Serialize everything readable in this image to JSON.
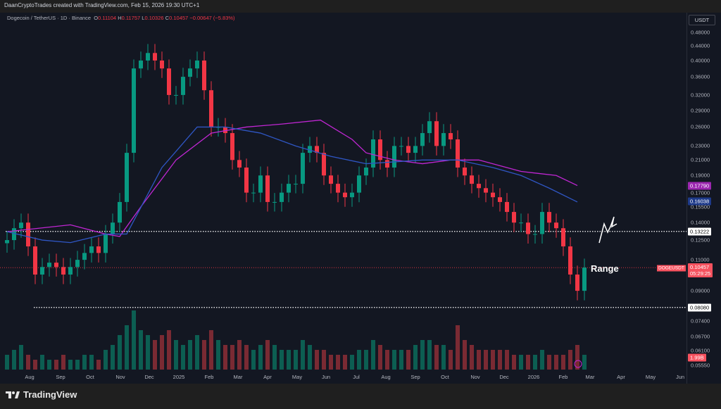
{
  "header": {
    "created_by": "DaanCryptoTrades created with TradingView.com, Feb 15, 2026 19:30 UTC+1"
  },
  "legend": {
    "symbol": "Dogecoin / TetherUS · 1D · Binance",
    "open_label": "O",
    "open": "0.11104",
    "high_label": "H",
    "high": "0.11757",
    "low_label": "L",
    "low": "0.10326",
    "close_label": "C",
    "close": "0.10457",
    "change": "−0.00647 (−5.83%)"
  },
  "currency": "USDT",
  "price_axis": [
    "0.48000",
    "0.44000",
    "0.40000",
    "0.36000",
    "0.32000",
    "0.29000",
    "0.26000",
    "0.23000",
    "0.21000",
    "0.19000",
    "0.17000",
    "0.15500",
    "0.14000",
    "0.12500",
    "0.11000",
    "0.09000",
    "0.07400",
    "0.06700",
    "0.06100",
    "0.05550"
  ],
  "time_axis": [
    "Aug",
    "Sep",
    "Oct",
    "Nov",
    "Dec",
    "2025",
    "Feb",
    "Mar",
    "Apr",
    "May",
    "Jun",
    "Jul",
    "Aug",
    "Sep",
    "Oct",
    "Nov",
    "Dec",
    "2026",
    "Feb",
    "Mar",
    "Apr",
    "May",
    "Jun"
  ],
  "tags": {
    "ma_purple": "0.17790",
    "ma_blue": "0.16038",
    "level_high": "0.13222",
    "level_low": "0.08080",
    "symbol": "DOGEUSDT",
    "price": "0.10457",
    "countdown": "05:29:25",
    "volume": "1.99B"
  },
  "annotation": {
    "text": "Range"
  },
  "colors": {
    "up": "#089981",
    "down": "#f23645",
    "ma_purple": "#c026d3",
    "ma_blue": "#1e40af",
    "background": "#131722"
  },
  "footer": {
    "brand": "TradingView"
  },
  "chart_data": {
    "type": "candlestick",
    "scale": "log",
    "ylim": [
      0.0555,
      0.48
    ],
    "interval": "1W",
    "weekly_close": [
      0.125,
      0.135,
      0.14,
      0.12,
      0.1,
      0.105,
      0.108,
      0.105,
      0.1,
      0.105,
      0.11,
      0.115,
      0.12,
      0.115,
      0.13,
      0.14,
      0.16,
      0.22,
      0.38,
      0.4,
      0.42,
      0.4,
      0.38,
      0.32,
      0.32,
      0.36,
      0.38,
      0.4,
      0.33,
      0.26,
      0.26,
      0.25,
      0.21,
      0.2,
      0.17,
      0.17,
      0.19,
      0.16,
      0.16,
      0.17,
      0.18,
      0.18,
      0.22,
      0.23,
      0.22,
      0.19,
      0.18,
      0.17,
      0.165,
      0.17,
      0.19,
      0.2,
      0.24,
      0.21,
      0.2,
      0.23,
      0.23,
      0.22,
      0.23,
      0.25,
      0.27,
      0.23,
      0.25,
      0.24,
      0.2,
      0.19,
      0.18,
      0.175,
      0.17,
      0.165,
      0.16,
      0.15,
      0.14,
      0.14,
      0.13,
      0.13,
      0.15,
      0.14,
      0.135,
      0.12,
      0.1,
      0.09,
      0.1046
    ],
    "volume": [
      3,
      4,
      5,
      3,
      2,
      3,
      2,
      2,
      3,
      2,
      2,
      3,
      3,
      2,
      4,
      5,
      7,
      9,
      12,
      8,
      7,
      6,
      7,
      8,
      6,
      5,
      6,
      7,
      6,
      8,
      6,
      5,
      5,
      6,
      5,
      4,
      5,
      6,
      5,
      4,
      4,
      4,
      6,
      5,
      4,
      4,
      3,
      3,
      3,
      3,
      4,
      4,
      6,
      5,
      4,
      4,
      4,
      4,
      5,
      6,
      6,
      5,
      5,
      4,
      9,
      6,
      5,
      4,
      4,
      4,
      4,
      4,
      3,
      3,
      3,
      3,
      4,
      3,
      3,
      3,
      4,
      5,
      3
    ],
    "ma_purple": [
      [
        0,
        0.132
      ],
      [
        9,
        0.138
      ],
      [
        14,
        0.13
      ],
      [
        16,
        0.128
      ],
      [
        19,
        0.155
      ],
      [
        24,
        0.21
      ],
      [
        29,
        0.25
      ],
      [
        34,
        0.26
      ],
      [
        39,
        0.265
      ],
      [
        44.5,
        0.272
      ],
      [
        49,
        0.24
      ],
      [
        51,
        0.22
      ],
      [
        55,
        0.21
      ],
      [
        59,
        0.205
      ],
      [
        63,
        0.21
      ],
      [
        67,
        0.21
      ],
      [
        73,
        0.195
      ],
      [
        78,
        0.19
      ],
      [
        81,
        0.178
      ]
    ],
    "ma_blue": [
      [
        0,
        0.132
      ],
      [
        5,
        0.125
      ],
      [
        9,
        0.123
      ],
      [
        14,
        0.13
      ],
      [
        17,
        0.13
      ],
      [
        22,
        0.2
      ],
      [
        27,
        0.26
      ],
      [
        31,
        0.26
      ],
      [
        36,
        0.25
      ],
      [
        41,
        0.23
      ],
      [
        46,
        0.215
      ],
      [
        51,
        0.205
      ],
      [
        59,
        0.21
      ],
      [
        64,
        0.21
      ],
      [
        69,
        0.2
      ],
      [
        73,
        0.19
      ],
      [
        77,
        0.175
      ],
      [
        81,
        0.16
      ]
    ],
    "levels": [
      0.13222,
      0.0808
    ]
  }
}
